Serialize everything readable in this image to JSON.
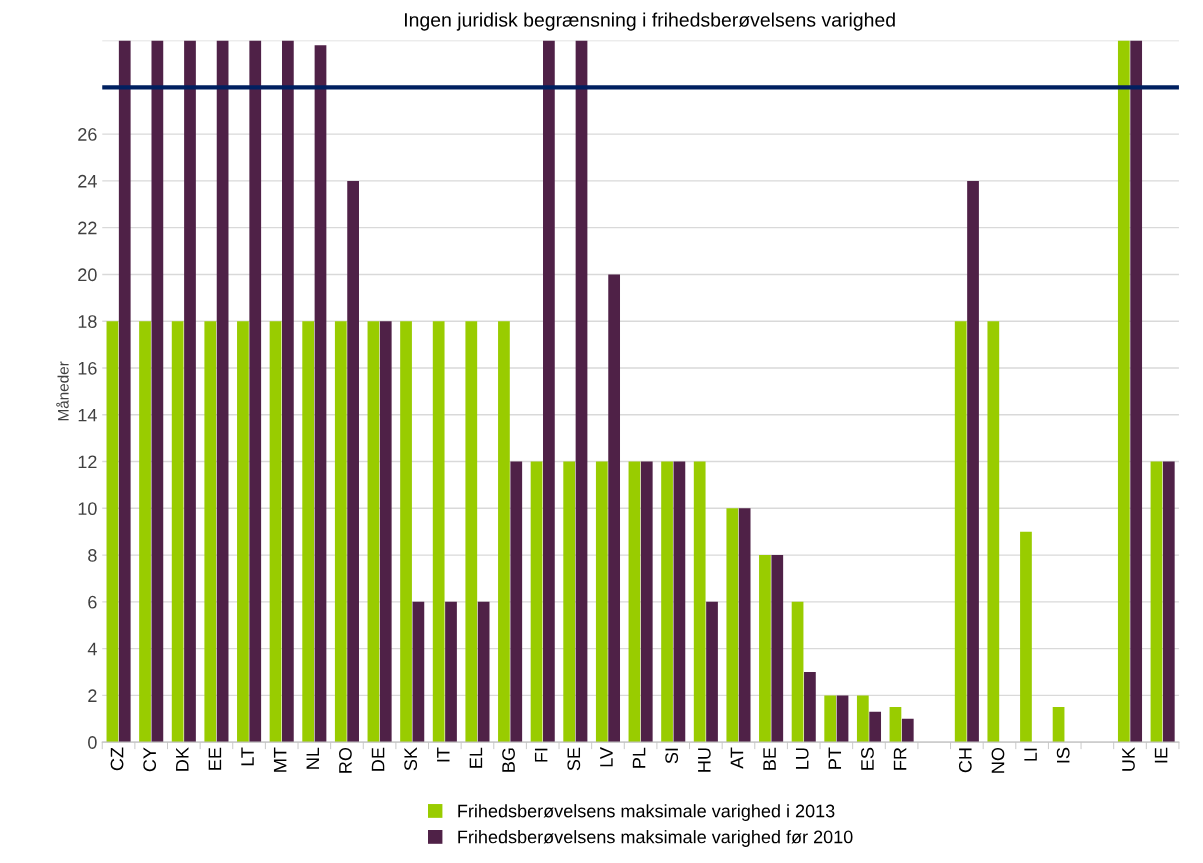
{
  "chart_data": {
    "type": "bar",
    "title": "Ingen juridisk begrænsning i frihedsberøvelsens varighed",
    "ylabel": "Måneder",
    "categories": [
      "CZ",
      "CY",
      "DK",
      "EE",
      "LT",
      "MT",
      "NL",
      "RO",
      "DE",
      "SK",
      "IT",
      "EL",
      "BG",
      "FI",
      "SE",
      "LV",
      "PL",
      "SI",
      "HU",
      "AT",
      "BE",
      "LU",
      "PT",
      "ES",
      "FR",
      null,
      "CH",
      "NO",
      "LI",
      "IS",
      null,
      "UK",
      "IE"
    ],
    "series": [
      {
        "name": "Frihedsberøvelsens maksimale varighed i 2013",
        "color": "#99cc00",
        "values": [
          18,
          18,
          18,
          18,
          18,
          18,
          18,
          18,
          18,
          18,
          18,
          18,
          18,
          12,
          12,
          12,
          12,
          12,
          12,
          10,
          8,
          6,
          2,
          2,
          1.5,
          null,
          18,
          18,
          9,
          1.5,
          null,
          30,
          12
        ]
      },
      {
        "name": "Frihedsberøvelsens maksimale varighed før 2010",
        "color": "#4f2147",
        "values": [
          30,
          30,
          30,
          30,
          30,
          30,
          29.8,
          24,
          18,
          6,
          6,
          6,
          12,
          30,
          30,
          20,
          12,
          12,
          6,
          10,
          8,
          3,
          2,
          1.3,
          1,
          null,
          24,
          null,
          null,
          null,
          null,
          30,
          12
        ]
      }
    ],
    "ylim": [
      0,
      30
    ],
    "yticks": [
      0,
      2,
      4,
      6,
      8,
      10,
      12,
      14,
      16,
      18,
      20,
      22,
      24,
      26,
      {
        "value": 28,
        "label": null
      },
      {
        "value": 30,
        "label": null
      }
    ],
    "ref_lines": [
      {
        "axis": "y",
        "value": 28,
        "color": "#002060"
      }
    ],
    "grid": "y",
    "legend": "bottom"
  }
}
